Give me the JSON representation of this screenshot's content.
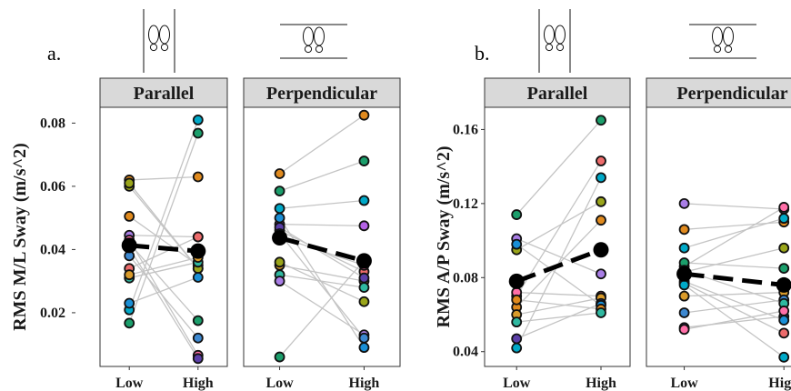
{
  "chart_data": [
    {
      "type": "scatter",
      "panel_label": "a.",
      "ylabel": "RMS M/L Sway (m/s^2)",
      "ylim": [
        0.003,
        0.085
      ],
      "yticks": [
        0.02,
        0.04,
        0.06,
        0.08
      ],
      "ytick_labels": [
        "0.02",
        "0.04",
        "0.06",
        "0.08"
      ],
      "categories": [
        "Low",
        "High"
      ],
      "grid": false,
      "facets": [
        {
          "name": "Parallel",
          "stance_icon": "feet-parallel-icon",
          "subjects": [
            {
              "color": "#00a9c8",
              "values": [
                0.0209,
                0.081
              ]
            },
            {
              "color": "#1b9e6b",
              "values": [
                0.0167,
                0.0768
              ]
            },
            {
              "color": "#e08a1e",
              "values": [
                0.062,
                0.063
              ]
            },
            {
              "color": "#9aa51a",
              "values": [
                0.06,
                0.034
              ]
            },
            {
              "color": "#a97ee6",
              "values": [
                0.0445,
                0.044
              ]
            },
            {
              "color": "#ec6b6b",
              "values": [
                0.034,
                0.044
              ]
            },
            {
              "color": "#e08a1e",
              "values": [
                0.0505,
                0.035
              ]
            },
            {
              "color": "#9aa51a",
              "values": [
                0.061,
                0.034
              ]
            },
            {
              "color": "#1a8fd6",
              "values": [
                0.023,
                0.0312
              ]
            },
            {
              "color": "#ff6fa8",
              "values": [
                0.043,
                0.0065
              ]
            },
            {
              "color": "#2fb8a0",
              "values": [
                0.031,
                0.036
              ]
            },
            {
              "color": "#5b3fa8",
              "values": [
                0.0405,
                0.0055
              ]
            },
            {
              "color": "#1b9e6b",
              "values": [
                0.042,
                0.0175
              ]
            },
            {
              "color": "#d99b2b",
              "values": [
                0.032,
                0.0375
              ]
            },
            {
              "color": "#3d88d0",
              "values": [
                0.038,
                0.012
              ]
            }
          ],
          "mean": [
            0.0413,
            0.0395
          ]
        },
        {
          "name": "Perpendicular",
          "stance_icon": "feet-perpendicular-icon",
          "subjects": [
            {
              "color": "#e08a1e",
              "values": [
                0.064,
                0.0825
              ]
            },
            {
              "color": "#1b9e6b",
              "values": [
                0.0585,
                0.068
              ]
            },
            {
              "color": "#00a9c8",
              "values": [
                0.053,
                0.0555
              ]
            },
            {
              "color": "#b462e6",
              "values": [
                0.048,
                0.0475
              ]
            },
            {
              "color": "#1b9e6b",
              "values": [
                0.006,
                0.0365
              ]
            },
            {
              "color": "#ec6b6b",
              "values": [
                0.046,
                0.033
              ]
            },
            {
              "color": "#ff6fa8",
              "values": [
                0.044,
                0.035
              ]
            },
            {
              "color": "#d99b2b",
              "values": [
                0.035,
                0.03
              ]
            },
            {
              "color": "#9aa51a",
              "values": [
                0.036,
                0.0235
              ]
            },
            {
              "color": "#2fb8a0",
              "values": [
                0.032,
                0.028
              ]
            },
            {
              "color": "#a97ee6",
              "values": [
                0.03,
                0.013
              ]
            },
            {
              "color": "#1a8fd6",
              "values": [
                0.05,
                0.009
              ]
            },
            {
              "color": "#5b3fa8",
              "values": [
                0.047,
                0.031
              ]
            },
            {
              "color": "#3d88d0",
              "values": [
                0.045,
                0.012
              ]
            }
          ],
          "mean": [
            0.0437,
            0.0364
          ]
        }
      ]
    },
    {
      "type": "scatter",
      "panel_label": "b.",
      "ylabel": "RMS A/P Sway (m/s^2)",
      "ylim": [
        0.032,
        0.172
      ],
      "yticks": [
        0.04,
        0.08,
        0.12,
        0.16
      ],
      "ytick_labels": [
        "0.04",
        "0.08",
        "0.12",
        "0.16"
      ],
      "categories": [
        "Low",
        "High"
      ],
      "grid": false,
      "facets": [
        {
          "name": "Parallel",
          "stance_icon": "feet-parallel-icon",
          "subjects": [
            {
              "color": "#1b9e6b",
              "values": [
                0.114,
                0.165
              ]
            },
            {
              "color": "#ec6b6b",
              "values": [
                0.07,
                0.143
              ]
            },
            {
              "color": "#00a9c8",
              "values": [
                0.042,
                0.134
              ]
            },
            {
              "color": "#9aa51a",
              "values": [
                0.095,
                0.121
              ]
            },
            {
              "color": "#e08a1e",
              "values": [
                0.064,
                0.111
              ]
            },
            {
              "color": "#a97ee6",
              "values": [
                0.101,
                0.082
              ]
            },
            {
              "color": "#ff6fa8",
              "values": [
                0.072,
                0.07
              ]
            },
            {
              "color": "#d99b2b",
              "values": [
                0.06,
                0.069
              ]
            },
            {
              "color": "#5b3fa8",
              "values": [
                0.047,
                0.066
              ]
            },
            {
              "color": "#1a8fd6",
              "values": [
                0.098,
                0.065
              ]
            },
            {
              "color": "#e08a1e",
              "values": [
                0.068,
                0.063
              ]
            },
            {
              "color": "#2fb8a0",
              "values": [
                0.056,
                0.061
              ]
            }
          ],
          "mean": [
            0.078,
            0.095
          ]
        },
        {
          "name": "Perpendicular",
          "stance_icon": "feet-perpendicular-icon",
          "subjects": [
            {
              "color": "#a97ee6",
              "values": [
                0.12,
                0.117
              ]
            },
            {
              "color": "#e08a1e",
              "values": [
                0.106,
                0.11
              ]
            },
            {
              "color": "#00a9c8",
              "values": [
                0.096,
                0.112
              ]
            },
            {
              "color": "#ff6fa8",
              "values": [
                0.086,
                0.118
              ]
            },
            {
              "color": "#9aa51a",
              "values": [
                0.083,
                0.096
              ]
            },
            {
              "color": "#1b9e6b",
              "values": [
                0.088,
                0.085
              ]
            },
            {
              "color": "#d99b2b",
              "values": [
                0.07,
                0.072
              ]
            },
            {
              "color": "#3d88d0",
              "values": [
                0.061,
                0.068
              ]
            },
            {
              "color": "#2fb8a0",
              "values": [
                0.084,
                0.066
              ]
            },
            {
              "color": "#5b3fa8",
              "values": [
                0.053,
                0.059
              ]
            },
            {
              "color": "#1a8fd6",
              "values": [
                0.078,
                0.057
              ]
            },
            {
              "color": "#ec6b6b",
              "values": [
                0.077,
                0.05
              ]
            },
            {
              "color": "#ff6fa8",
              "values": [
                0.052,
                0.062
              ]
            },
            {
              "color": "#00a9c8",
              "values": [
                0.076,
                0.037
              ]
            }
          ],
          "mean": [
            0.082,
            0.076
          ]
        }
      ]
    }
  ]
}
